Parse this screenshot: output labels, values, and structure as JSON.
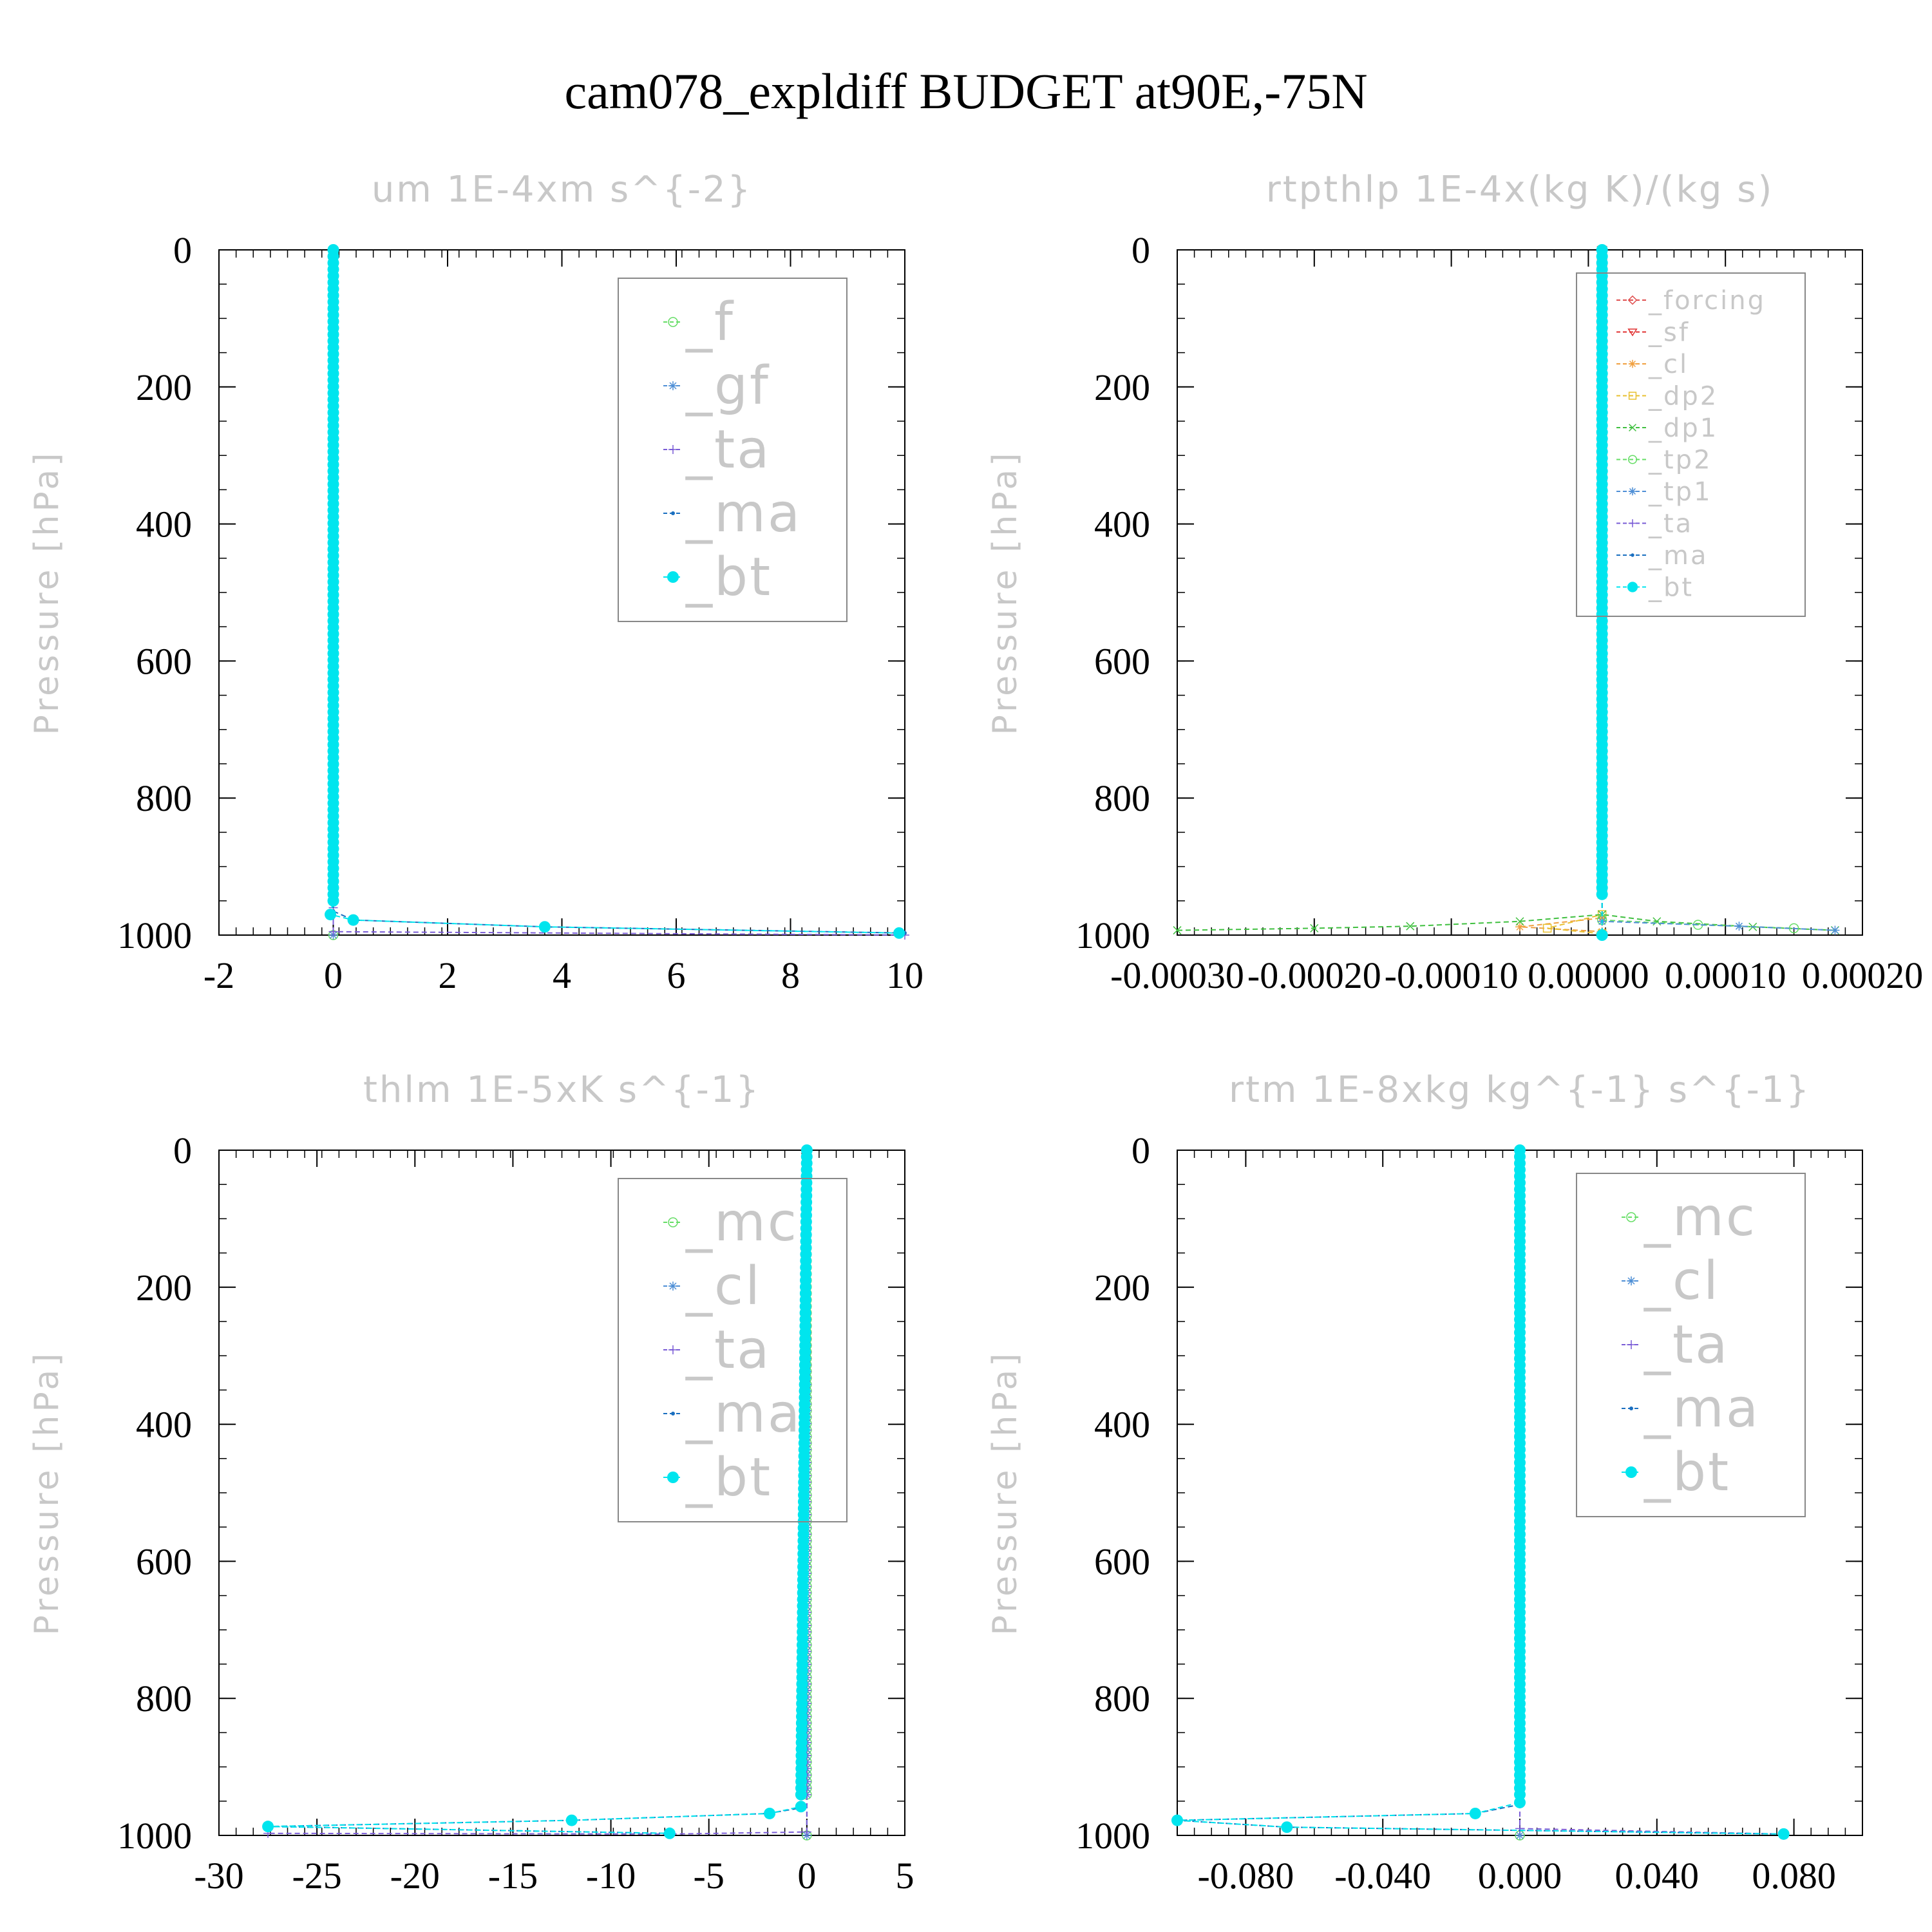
{
  "title": "cam078_expldiff  BUDGET at90E,-75N",
  "colors": {
    "f": "#66dd66",
    "gf": "#4f8fd6",
    "ta": "#7a5cd6",
    "ma": "#1a6fc0",
    "bt": "#00e5ee",
    "forcing": "#e05050",
    "sf": "#e03030",
    "cl_a": "#f0a040",
    "dp2": "#e8c030",
    "dp1": "#40c040",
    "tp2": "#66dd66",
    "tp1": "#4f8fd6",
    "mc": "#66dd66",
    "cl": "#4f8fd6"
  },
  "chart_data": [
    {
      "type": "line",
      "title": "um  1E-4xm s^{-2}",
      "ylabel": "Pressure [hPa]",
      "xlim": [
        -2,
        10
      ],
      "ylim": [
        1000,
        0
      ],
      "xticks": [
        "-2",
        "0",
        "2",
        "4",
        "6",
        "8",
        "10"
      ],
      "yticks": [
        "0",
        "200",
        "400",
        "600",
        "800",
        "1000"
      ],
      "legend": [
        "_f",
        "_gf",
        "_ta",
        "_ma",
        "_bt"
      ],
      "series": [
        {
          "name": "_f",
          "x": [
            0,
            0
          ],
          "y": [
            0,
            1000
          ]
        },
        {
          "name": "_gf",
          "x": [
            0,
            0
          ],
          "y": [
            0,
            1000
          ]
        },
        {
          "name": "_ta",
          "x": [
            0,
            0,
            0,
            10
          ],
          "y": [
            0,
            960,
            995,
            1000
          ]
        },
        {
          "name": "_ma",
          "x": [
            0,
            0,
            0.35,
            3.7,
            10
          ],
          "y": [
            0,
            965,
            978,
            988,
            997
          ]
        },
        {
          "name": "_bt",
          "x": [
            0,
            0,
            -0.05,
            0.35,
            3.7,
            9.9
          ],
          "y": [
            0,
            950,
            970,
            978,
            988,
            997
          ]
        }
      ]
    },
    {
      "type": "line",
      "title": "rtpthlp  1E-4x(kg K)/(kg s)",
      "ylabel": "Pressure [hPa]",
      "xlim": [
        -0.0003,
        0.0002
      ],
      "ylim": [
        1000,
        0
      ],
      "xticks": [
        "-0.00030",
        "-0.00020",
        "-0.00010",
        "0.00000",
        "0.00010",
        "0.00020"
      ],
      "yticks": [
        "0",
        "200",
        "400",
        "600",
        "800",
        "1000"
      ],
      "legend": [
        "_forcing",
        "_sf",
        "_cl",
        "_dp2",
        "_dp1",
        "_tp2",
        "_tp1",
        "_ta",
        "_ma",
        "_bt"
      ],
      "series": [
        {
          "name": "_forcing",
          "x": [
            1e-05,
            1e-05
          ],
          "y": [
            0,
            1000
          ]
        },
        {
          "name": "_sf",
          "x": [
            1e-05,
            1e-05
          ],
          "y": [
            0,
            1000
          ]
        },
        {
          "name": "_cl",
          "x": [
            1e-05,
            1e-05,
            -5e-05,
            1e-05
          ],
          "y": [
            0,
            975,
            988,
            995
          ]
        },
        {
          "name": "_dp2",
          "x": [
            1e-05,
            1e-05,
            -3e-05,
            1e-05
          ],
          "y": [
            0,
            970,
            990,
            998
          ]
        },
        {
          "name": "_dp1",
          "x": [
            -0.0003,
            -0.0002,
            -0.00013,
            -5e-05,
            1e-05,
            5e-05,
            0.00012,
            0.00018
          ],
          "y": [
            993,
            990,
            987,
            980,
            970,
            980,
            988,
            993
          ]
        },
        {
          "name": "_tp2",
          "x": [
            1e-05,
            1e-05,
            8e-05,
            0.00015
          ],
          "y": [
            0,
            978,
            985,
            990
          ]
        },
        {
          "name": "_tp1",
          "x": [
            1e-05,
            1e-05,
            0.00011,
            0.00018
          ],
          "y": [
            0,
            980,
            987,
            993
          ]
        },
        {
          "name": "_ta",
          "x": [
            1e-05,
            1e-05
          ],
          "y": [
            0,
            1000
          ]
        },
        {
          "name": "_ma",
          "x": [
            1e-05,
            1e-05
          ],
          "y": [
            0,
            1000
          ]
        },
        {
          "name": "_bt",
          "x": [
            1e-05,
            1e-05
          ],
          "y": [
            0,
            1000
          ]
        }
      ]
    },
    {
      "type": "line",
      "title": "thlm  1E-5xK s^{-1}",
      "ylabel": "Pressure [hPa]",
      "xlim": [
        -30,
        5
      ],
      "ylim": [
        1000,
        0
      ],
      "xticks": [
        "-30",
        "-25",
        "-20",
        "-15",
        "-10",
        "-5",
        "0",
        "5"
      ],
      "yticks": [
        "0",
        "200",
        "400",
        "600",
        "800",
        "1000"
      ],
      "legend": [
        "_mc",
        "_cl",
        "_ta",
        "_ma",
        "_bt"
      ],
      "series": [
        {
          "name": "_mc",
          "x": [
            0,
            0
          ],
          "y": [
            0,
            1000
          ]
        },
        {
          "name": "_cl",
          "x": [
            0,
            0
          ],
          "y": [
            0,
            1000
          ]
        },
        {
          "name": "_ta",
          "x": [
            0,
            0,
            -7,
            -27.5
          ],
          "y": [
            0,
            995,
            998,
            997
          ]
        },
        {
          "name": "_ma",
          "x": [
            0,
            -0.3,
            -2,
            -12,
            -27.5,
            -7
          ],
          "y": [
            0,
            960,
            968,
            978,
            987,
            997
          ]
        },
        {
          "name": "_bt",
          "x": [
            0,
            -0.3,
            -1.9,
            -12,
            -27.5,
            -7
          ],
          "y": [
            0,
            958,
            968,
            978,
            987,
            997
          ]
        }
      ]
    },
    {
      "type": "line",
      "title": "rtm  1E-8xkg kg^{-1} s^{-1}",
      "ylabel": "Pressure [hPa]",
      "xlim": [
        -0.1,
        0.1
      ],
      "ylim": [
        1000,
        0
      ],
      "xticks": [
        "-0.080",
        "-0.040",
        "0.000",
        "0.040",
        "0.080"
      ],
      "yticks": [
        "0",
        "200",
        "400",
        "600",
        "800",
        "1000"
      ],
      "legend": [
        "_mc",
        "_cl",
        "_ta",
        "_ma",
        "_bt"
      ],
      "series": [
        {
          "name": "_mc",
          "x": [
            0,
            0
          ],
          "y": [
            0,
            1000
          ]
        },
        {
          "name": "_cl",
          "x": [
            0,
            0
          ],
          "y": [
            0,
            1000
          ]
        },
        {
          "name": "_ta",
          "x": [
            0,
            0,
            0.077
          ],
          "y": [
            0,
            990,
            998
          ]
        },
        {
          "name": "_ma",
          "x": [
            0,
            0,
            -0.013,
            -0.1,
            -0.068,
            0.077
          ],
          "y": [
            0,
            955,
            968,
            978,
            988,
            998
          ]
        },
        {
          "name": "_bt",
          "x": [
            0,
            0,
            -0.013,
            -0.1,
            -0.068,
            0.077
          ],
          "y": [
            0,
            952,
            968,
            978,
            988,
            998
          ]
        }
      ]
    }
  ]
}
